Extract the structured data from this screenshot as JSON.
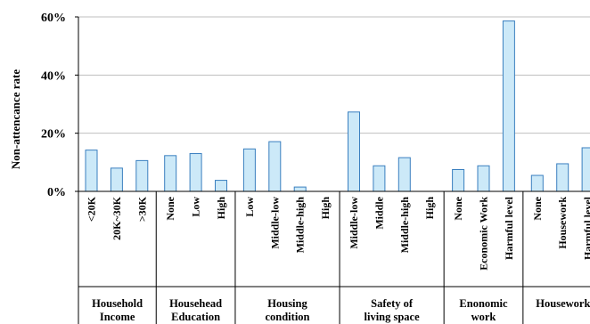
{
  "chart_data": {
    "type": "bar",
    "title": "",
    "xlabel": "",
    "ylabel": "Non-attencance rate",
    "ylim": [
      0,
      60
    ],
    "y_ticks": [
      "0%",
      "20%",
      "40%",
      "60%"
    ],
    "y_tick_values": [
      0,
      20,
      40,
      60
    ],
    "grid": true,
    "bar_color": "#cce9f8",
    "bar_edge_color": "#3a7fbf",
    "groups": [
      {
        "label": "Household Income",
        "label_lines": [
          "Household",
          "Income"
        ],
        "categories": [
          "<20K",
          "20K~30K",
          ">30K"
        ],
        "values": [
          14.2,
          8.0,
          10.6
        ]
      },
      {
        "label": "Househead Education",
        "label_lines": [
          "Househead",
          "Education"
        ],
        "categories": [
          "None",
          "Low",
          "High"
        ],
        "values": [
          12.3,
          13.0,
          3.8
        ]
      },
      {
        "label": "Housing condition",
        "label_lines": [
          "Housing",
          "condition"
        ],
        "categories": [
          "Low",
          "Middle-low",
          "Middle-high",
          "High"
        ],
        "values": [
          14.6,
          17.1,
          1.5,
          0
        ]
      },
      {
        "label": "Safety of living space",
        "label_lines": [
          "Safety of",
          "living space"
        ],
        "categories": [
          "Middle-low",
          "Middle",
          "Middle-high",
          "High"
        ],
        "values": [
          27.3,
          8.8,
          11.6,
          0
        ]
      },
      {
        "label": "Enonomic work",
        "label_lines": [
          "Enonomic",
          "work"
        ],
        "categories": [
          "None",
          "Economic Work",
          "Harmful level"
        ],
        "values": [
          7.5,
          8.8,
          58.6
        ]
      },
      {
        "label": "Housework",
        "label_lines": [
          "Housework",
          ""
        ],
        "categories": [
          "None",
          "Housework",
          "Harmful level"
        ],
        "values": [
          5.5,
          9.5,
          15.0
        ]
      }
    ]
  }
}
